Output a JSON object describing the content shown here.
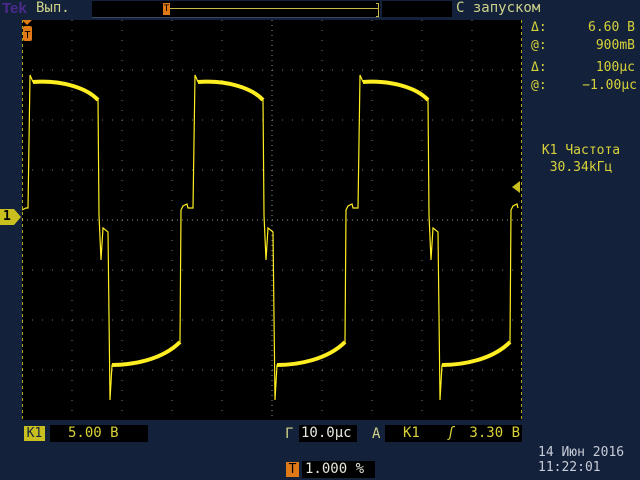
{
  "header": {
    "logo": "Tek",
    "run_state": "Вып.",
    "trigger_mode": "С запуском",
    "trigger_marker": "T"
  },
  "cursors": {
    "v_delta_label": "Δ:",
    "v_delta": "6.60 В",
    "v_at_label": "@:",
    "v_at": "900mВ",
    "t_delta_label": "Δ:",
    "t_delta": "100μс",
    "t_at_label": "@:",
    "t_at": "−1.00μс"
  },
  "measurement": {
    "label": "К1 Частота",
    "value": "30.34kГц"
  },
  "channel": {
    "badge": "К1",
    "marker": "1",
    "scale": "5.00 В"
  },
  "timebase": {
    "label": "Г",
    "value": "10.0μс"
  },
  "trigger": {
    "label": "А",
    "source": "К1",
    "slope": "rising",
    "slope_glyph": "ʃ",
    "level": "3.30 В"
  },
  "position": {
    "badge": "T",
    "value": "1.000 %"
  },
  "datetime": {
    "date": "14 Июн 2016",
    "time": "11:22:01"
  },
  "colors": {
    "trace": "#ffee22",
    "background": "#13223a",
    "trigger_marker": "#e07a16"
  }
}
